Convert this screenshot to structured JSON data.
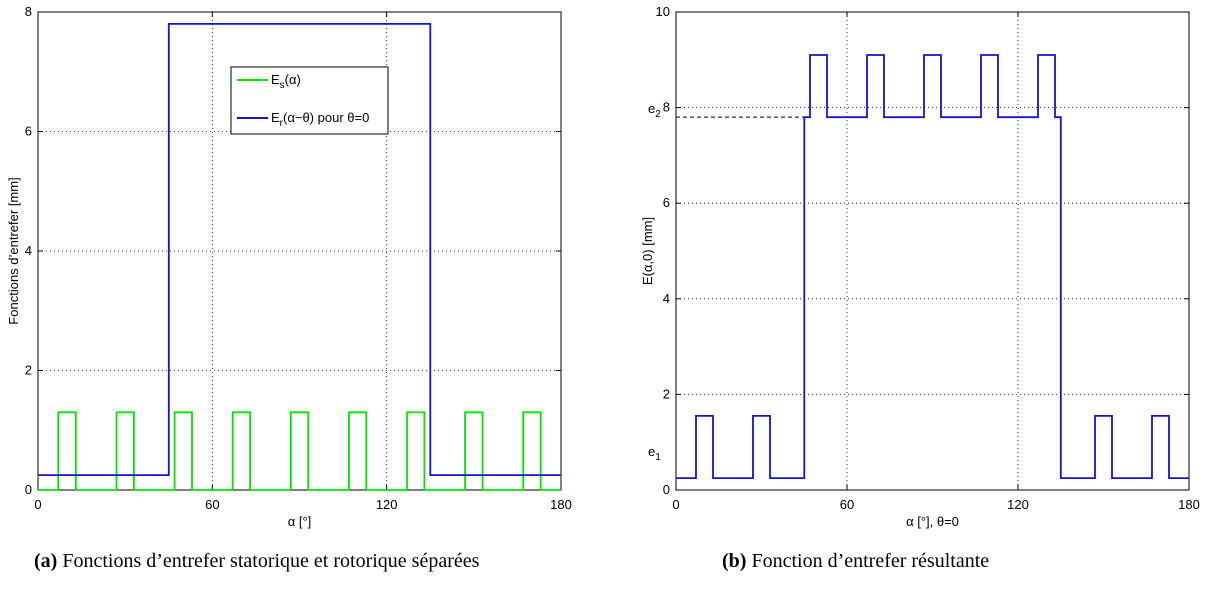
{
  "chart_data": [
    {
      "type": "line",
      "xlabel": "α [°]",
      "ylabel": "Fonctions d’entrefer [mm]",
      "xlim": [
        0,
        180
      ],
      "ylim": [
        0,
        8
      ],
      "xticks": [
        0,
        60,
        120,
        180
      ],
      "yticks": [
        0,
        2,
        4,
        6,
        8
      ],
      "grid": true,
      "legend_position": "top-center",
      "series": [
        {
          "name": "E_s(α)",
          "legend": {
            "base": "E",
            "sub": "s",
            "rest": "(α)"
          },
          "color": "#00e600",
          "x": [
            0,
            7,
            7,
            13,
            13,
            27,
            27,
            33,
            33,
            47,
            47,
            53,
            53,
            67,
            67,
            73,
            73,
            87,
            87,
            93,
            93,
            107,
            107,
            113,
            113,
            127,
            127,
            133,
            133,
            147,
            147,
            153,
            153,
            167,
            167,
            173,
            173,
            180
          ],
          "y": [
            0,
            0,
            1.3,
            1.3,
            0,
            0,
            1.3,
            1.3,
            0,
            0,
            1.3,
            1.3,
            0,
            0,
            1.3,
            1.3,
            0,
            0,
            1.3,
            1.3,
            0,
            0,
            1.3,
            1.3,
            0,
            0,
            1.3,
            1.3,
            0,
            0,
            1.3,
            1.3,
            0,
            0,
            1.3,
            1.3,
            0,
            0
          ]
        },
        {
          "name": "E_r(α−θ) pour θ=0",
          "legend": {
            "base": "E",
            "sub": "r",
            "rest": "(α−θ) pour θ=0"
          },
          "color": "#1414c8",
          "x": [
            0,
            45,
            45,
            135,
            135,
            180
          ],
          "y": [
            0.25,
            0.25,
            7.8,
            7.8,
            0.25,
            0.25
          ]
        }
      ],
      "caption": {
        "label": "(a)",
        "text": "Fonctions d’entrefer statorique et rotorique séparées"
      }
    },
    {
      "type": "line",
      "xlabel": "α [°], θ=0",
      "ylabel": "E(α,0) [mm]",
      "xlim": [
        0,
        180
      ],
      "ylim": [
        0,
        10
      ],
      "xticks": [
        0,
        60,
        120,
        180
      ],
      "yticks": [
        0,
        2,
        4,
        6,
        8,
        10
      ],
      "grid": true,
      "series": [
        {
          "name": "",
          "color": "#1414c8",
          "x": [
            0,
            7,
            7,
            13,
            13,
            27,
            27,
            33,
            33,
            45,
            45,
            47,
            47,
            53,
            53,
            67,
            67,
            73,
            73,
            87,
            87,
            93,
            93,
            107,
            107,
            113,
            113,
            127,
            127,
            133,
            133,
            135,
            135,
            147,
            147,
            153,
            153,
            167,
            167,
            173,
            173,
            180
          ],
          "y": [
            0.25,
            0.25,
            1.55,
            1.55,
            0.25,
            0.25,
            1.55,
            1.55,
            0.25,
            0.25,
            7.8,
            7.8,
            9.1,
            9.1,
            7.8,
            7.8,
            9.1,
            9.1,
            7.8,
            7.8,
            9.1,
            9.1,
            7.8,
            7.8,
            9.1,
            9.1,
            7.8,
            7.8,
            9.1,
            9.1,
            7.8,
            7.8,
            0.25,
            0.25,
            1.55,
            1.55,
            0.25,
            0.25,
            1.55,
            1.55,
            0.25,
            0.25
          ]
        }
      ],
      "annotations": [
        {
          "base": "e",
          "sub": "2",
          "y": 7.8,
          "dashed": true
        },
        {
          "base": "e",
          "sub": "1",
          "y": 0.25,
          "dashed": false
        }
      ],
      "caption": {
        "label": "(b)",
        "text": "Fonction d’entrefer résultante"
      }
    }
  ]
}
